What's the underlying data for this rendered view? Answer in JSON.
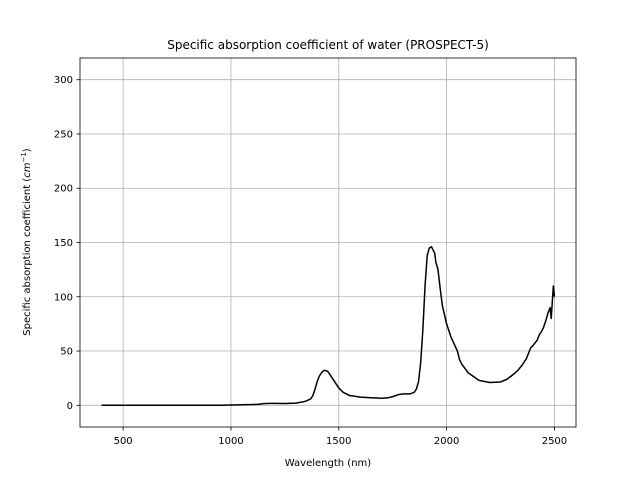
{
  "chart_data": {
    "type": "line",
    "title": "Specific absorption coefficient of water (PROSPECT-5)",
    "xlabel": "Wavelength (nm)",
    "ylabel_main": "Specific absorption coefficient (",
    "ylabel_unit_base": "cm",
    "ylabel_unit_exp": "−1",
    "ylabel_close": ")",
    "xlim": [
      300,
      2600
    ],
    "ylim": [
      -20,
      320
    ],
    "xticks": [
      500,
      1000,
      1500,
      2000,
      2500
    ],
    "yticks": [
      0,
      50,
      100,
      150,
      200,
      250,
      300
    ],
    "xtick_labels": [
      "500",
      "1000",
      "1500",
      "2000",
      "2500"
    ],
    "ytick_labels": [
      "0",
      "50",
      "100",
      "150",
      "200",
      "250",
      "300"
    ],
    "grid": true,
    "line_color": "#000000",
    "series": [
      {
        "x": [
          400,
          500,
          600,
          700,
          800,
          900,
          950,
          1000,
          1050,
          1100,
          1130,
          1150,
          1180,
          1200,
          1250,
          1300,
          1330,
          1350,
          1370,
          1380,
          1390,
          1400,
          1410,
          1420,
          1430,
          1440,
          1450,
          1460,
          1470,
          1480,
          1500,
          1520,
          1550,
          1600,
          1650,
          1700,
          1730,
          1750,
          1780,
          1800,
          1830,
          1850,
          1860,
          1870,
          1880,
          1890,
          1900,
          1910,
          1920,
          1930,
          1940,
          1945,
          1950,
          1960,
          1970,
          1980,
          2000,
          2020,
          2050,
          2060,
          2070,
          2100,
          2150,
          2200,
          2250,
          2280,
          2300,
          2330,
          2350,
          2370,
          2380,
          2390,
          2400,
          2420,
          2430,
          2440,
          2450,
          2460,
          2470,
          2480,
          2485,
          2490,
          2495,
          2500
        ],
        "y": [
          0,
          0,
          0,
          0,
          0,
          0,
          0,
          0.3,
          0.5,
          0.7,
          1.0,
          1.5,
          1.8,
          1.8,
          1.7,
          2.0,
          3.0,
          4.0,
          6.0,
          9.0,
          15.0,
          22.0,
          27.0,
          30.0,
          32.0,
          32.0,
          31.0,
          28.0,
          25.0,
          22.0,
          16.0,
          12.0,
          9.0,
          7.5,
          7.0,
          6.5,
          7.0,
          8.0,
          10.0,
          10.5,
          10.5,
          12.0,
          15.0,
          22.0,
          40.0,
          70.0,
          110.0,
          138.0,
          145.0,
          146.0,
          142.0,
          140.0,
          132.0,
          125.0,
          108.0,
          92.0,
          75.0,
          63.0,
          50.0,
          42.0,
          38.0,
          30.0,
          23.0,
          21.0,
          21.5,
          24.0,
          27.0,
          32.0,
          37.0,
          43.0,
          48.0,
          53.0,
          55.0,
          60.0,
          65.0,
          68.0,
          72.0,
          78.0,
          85.0,
          90.0,
          80.0,
          95.0,
          110.0,
          100.0
        ]
      }
    ]
  }
}
